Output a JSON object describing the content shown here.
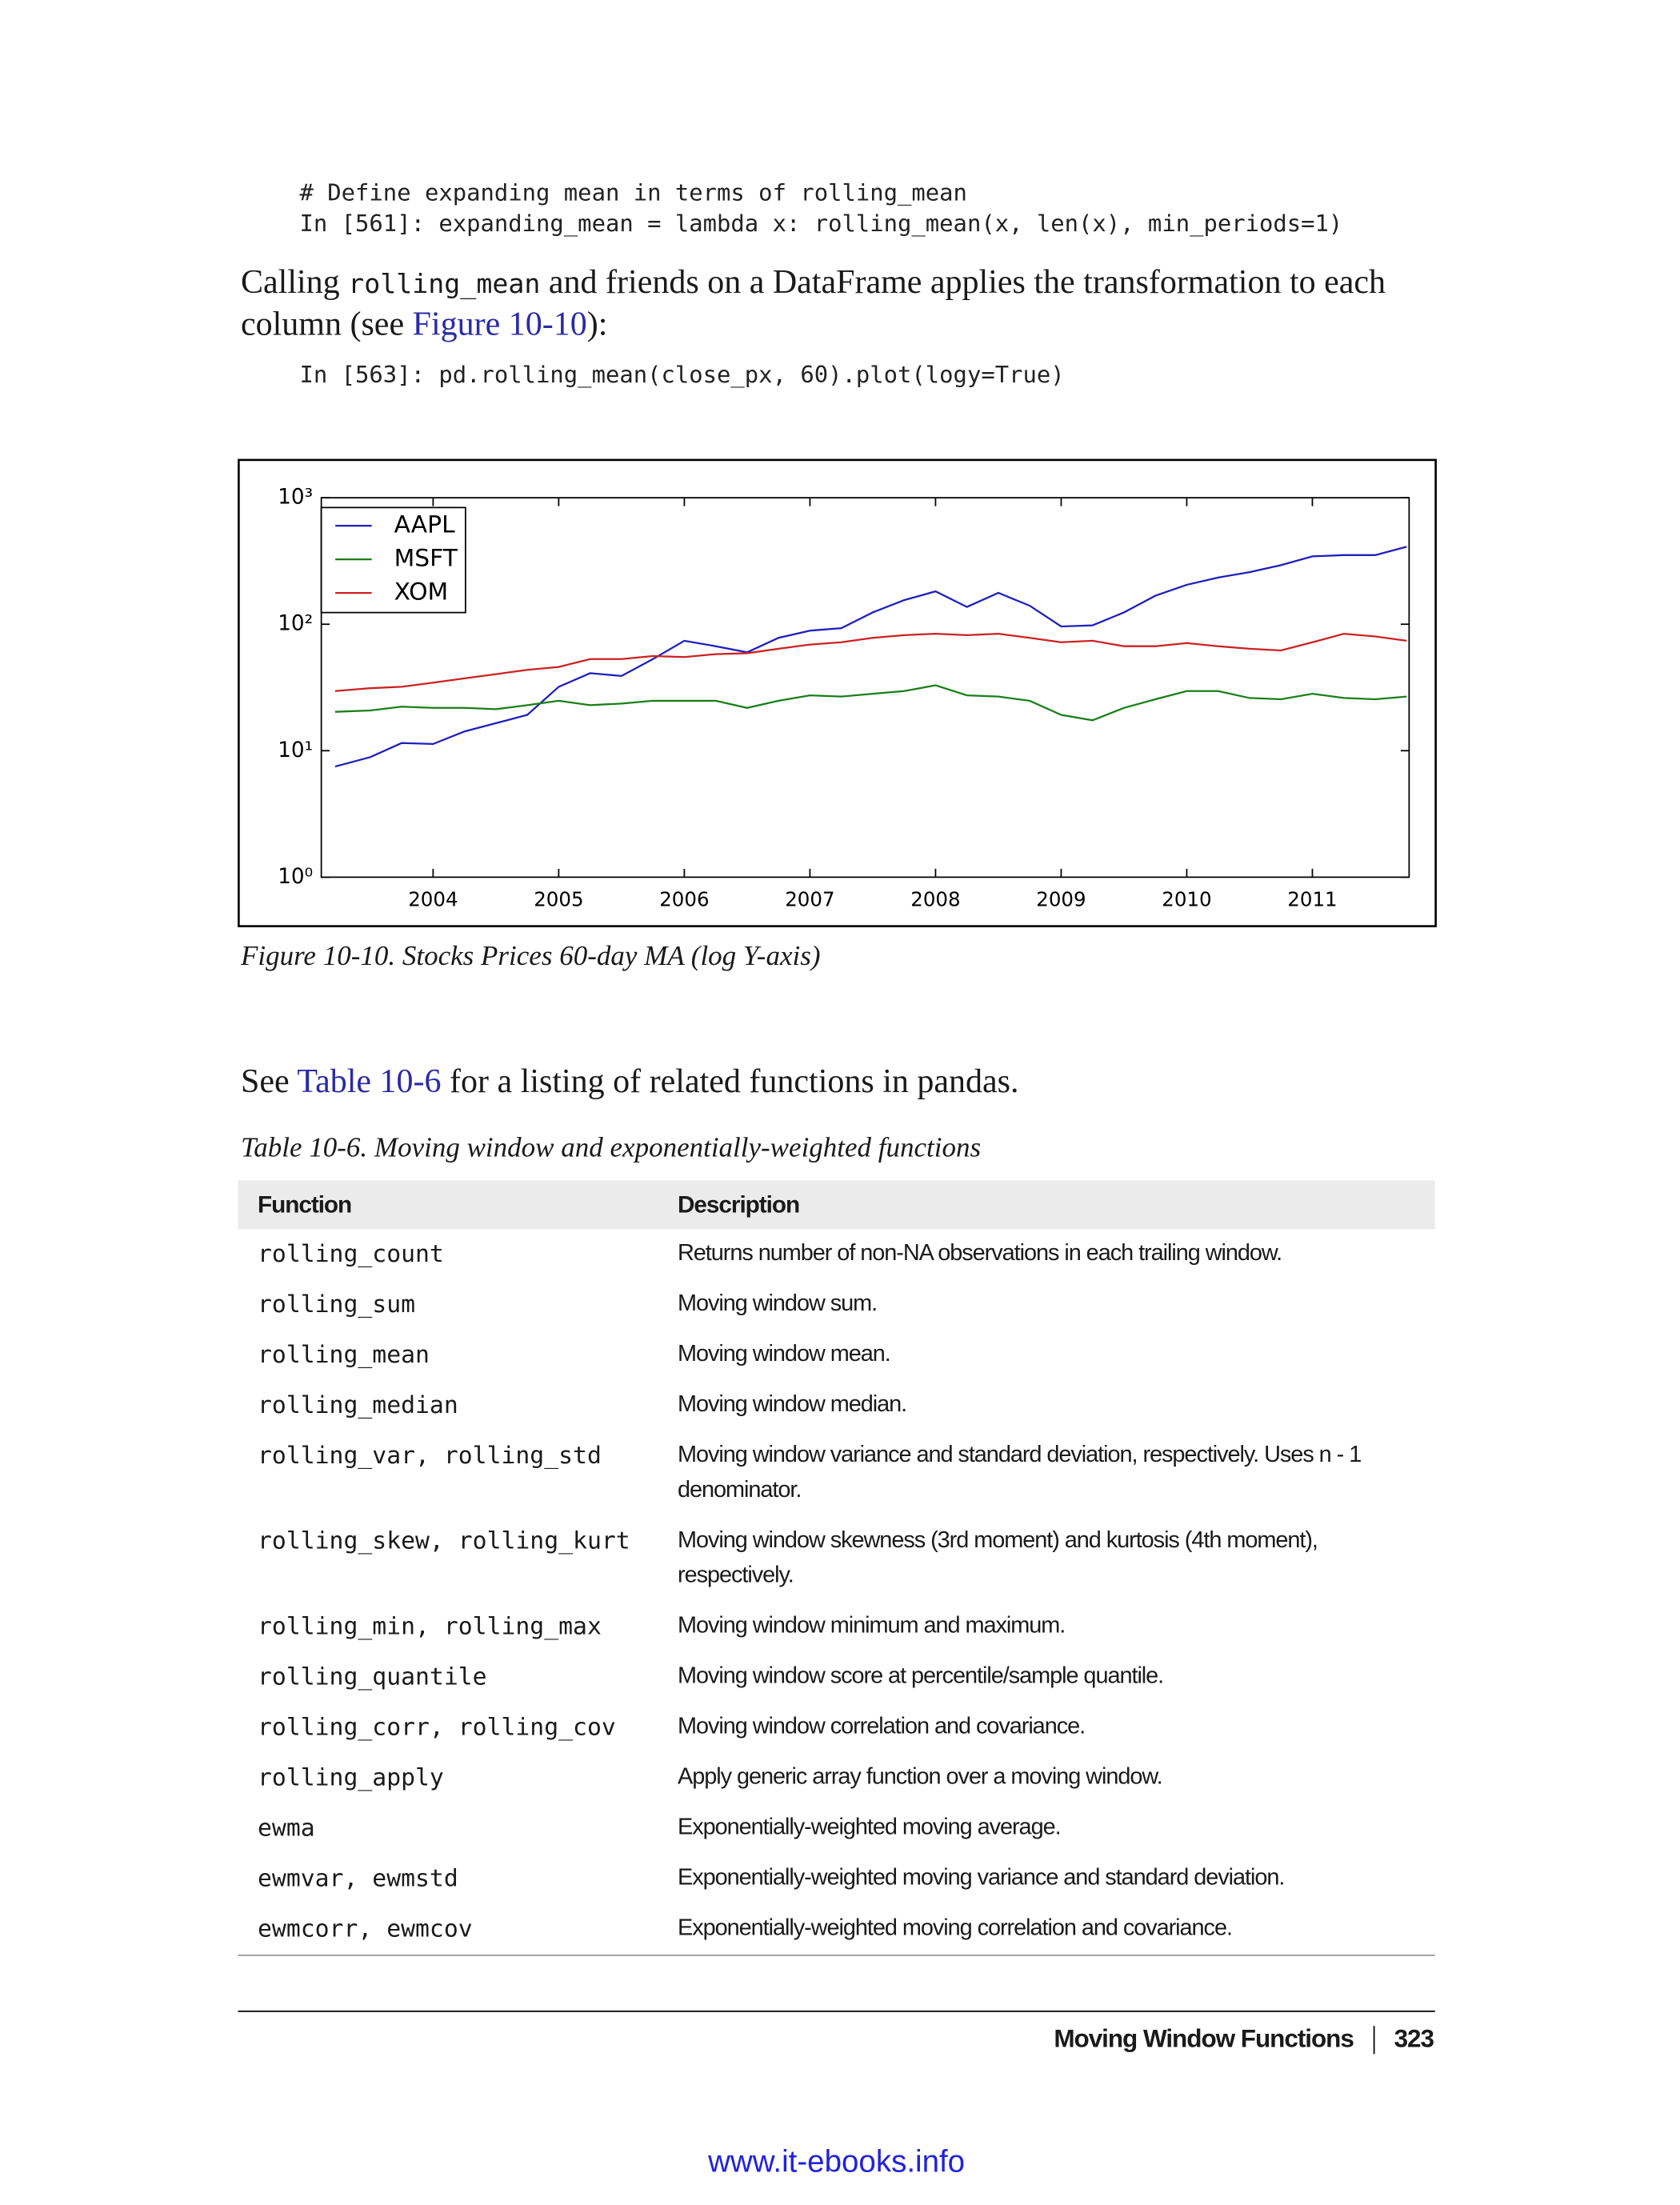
{
  "code_block_1": [
    "# Define expanding mean in terms of rolling_mean",
    "In [561]: expanding_mean = lambda x: rolling_mean(x, len(x), min_periods=1)"
  ],
  "paragraph_1": {
    "before": "Calling ",
    "code": "rolling_mean",
    "middle": " and friends on a DataFrame applies the transformation to each column (see ",
    "link": "Figure 10-10",
    "after": "):"
  },
  "code_block_2": [
    "In [563]: pd.rolling_mean(close_px, 60).plot(logy=True)"
  ],
  "chart_data": {
    "type": "line",
    "x": [
      2003.22,
      2003.5,
      2003.75,
      2004.0,
      2004.25,
      2004.5,
      2004.75,
      2005.0,
      2005.25,
      2005.5,
      2005.75,
      2006.0,
      2006.25,
      2006.5,
      2006.75,
      2007.0,
      2007.25,
      2007.5,
      2007.75,
      2008.0,
      2008.25,
      2008.5,
      2008.75,
      2009.0,
      2009.25,
      2009.5,
      2009.75,
      2010.0,
      2010.25,
      2010.5,
      2010.75,
      2011.0,
      2011.25,
      2011.5,
      2011.75
    ],
    "series": [
      {
        "name": "AAPL",
        "color": "#1f1fbf",
        "values": [
          7.5,
          8.9,
          11.5,
          11.3,
          14.2,
          16.5,
          19.2,
          32,
          41,
          39,
          53,
          74,
          67,
          60,
          78,
          89,
          93,
          124,
          155,
          182,
          137,
          177,
          140,
          96,
          98,
          124,
          168,
          205,
          234,
          258,
          293,
          344,
          352,
          352,
          410
        ]
      },
      {
        "name": "MSFT",
        "color": "#1a7f1a",
        "values": [
          20.3,
          20.8,
          22.3,
          21.8,
          21.8,
          21.3,
          22.9,
          24.8,
          22.9,
          23.6,
          24.8,
          24.8,
          24.8,
          21.8,
          24.8,
          27.4,
          26.8,
          28.2,
          29.6,
          32.9,
          27.4,
          26.8,
          24.8,
          19.2,
          17.4,
          21.8,
          25.5,
          29.6,
          29.6,
          26.1,
          25.5,
          28.2,
          26.1,
          25.5,
          26.8
        ]
      },
      {
        "name": "XOM",
        "color": "#cc2222",
        "values": [
          29.6,
          31.2,
          32,
          34.5,
          37.3,
          40.3,
          43.6,
          45.9,
          53,
          53,
          56,
          55,
          58,
          59,
          64,
          69,
          72,
          78,
          82,
          84,
          82,
          84,
          78,
          72,
          74,
          67,
          67,
          71,
          67,
          64,
          62,
          72,
          84,
          80,
          74
        ]
      }
    ],
    "xlim": [
      2003.11,
      2011.77
    ],
    "xticks": [
      2004,
      2005,
      2006,
      2007,
      2008,
      2009,
      2010,
      2011
    ],
    "ylim": [
      1,
      1000
    ],
    "yticks": [
      {
        "value": 1,
        "label": "10⁰"
      },
      {
        "value": 10,
        "label": "10¹"
      },
      {
        "value": 100,
        "label": "10²"
      },
      {
        "value": 1000,
        "label": "10³"
      }
    ],
    "log_y": true,
    "legend": "upper left"
  },
  "figure_caption": "Figure 10-10. Stocks Prices 60-day MA (log Y-axis)",
  "paragraph_2": {
    "before": "See ",
    "link": "Table 10-6",
    "after": " for a listing of related functions in pandas."
  },
  "table": {
    "caption": "Table 10-6. Moving window and exponentially-weighted functions",
    "header": [
      "Function",
      "Description"
    ],
    "rows": [
      [
        "rolling_count",
        "Returns number of non-NA observations in each trailing window."
      ],
      [
        "rolling_sum",
        "Moving window sum."
      ],
      [
        "rolling_mean",
        "Moving window mean."
      ],
      [
        "rolling_median",
        "Moving window median."
      ],
      [
        "rolling_var, rolling_std",
        "Moving window variance and standard deviation, respectively. Uses n - 1 denominator."
      ],
      [
        "rolling_skew, rolling_kurt",
        "Moving window skewness (3rd moment) and kurtosis (4th moment), respectively."
      ],
      [
        "rolling_min, rolling_max",
        "Moving window minimum and maximum."
      ],
      [
        "rolling_quantile",
        "Moving window score at percentile/sample quantile."
      ],
      [
        "rolling_corr, rolling_cov",
        "Moving window correlation and covariance."
      ],
      [
        "rolling_apply",
        "Apply generic array function over a moving window."
      ],
      [
        "ewma",
        "Exponentially-weighted moving average."
      ],
      [
        "ewmvar, ewmstd",
        "Exponentially-weighted moving variance and standard deviation."
      ],
      [
        "ewmcorr, ewmcov",
        "Exponentially-weighted moving correlation and covariance."
      ]
    ]
  },
  "footer": {
    "section": "Moving Window Functions",
    "page": "323"
  },
  "watermark": "www.it-ebooks.info"
}
